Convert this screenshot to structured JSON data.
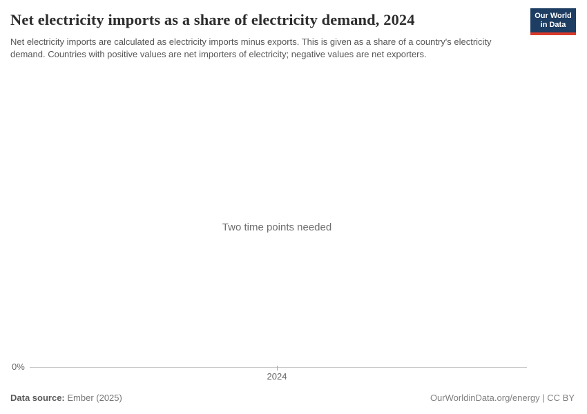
{
  "header": {
    "title": "Net electricity imports as a share of electricity demand, 2024",
    "subtitle": "Net electricity imports are calculated as electricity imports minus exports. This is given as a share of a country's electricity demand. Countries with positive values are net importers of electricity; negative values are net exporters.",
    "logo": {
      "line1": "Our World",
      "line2": "in Data",
      "bg_color": "#1d3d63",
      "accent_color": "#d93a2b"
    }
  },
  "chart": {
    "empty_message": "Two time points needed",
    "y_zero_label": "0%",
    "x_tick_label": "2024"
  },
  "chart_data": {
    "type": "line",
    "title": "Net electricity imports as a share of electricity demand, 2024",
    "series": [],
    "x_ticks": [
      "2024"
    ],
    "y_ticks": [
      "0%"
    ],
    "empty_state_message": "Two time points needed",
    "grid": false,
    "legend": "none",
    "axis_color": "#c8c8c8"
  },
  "footer": {
    "source_label": "Data source:",
    "source_value": " Ember (2025)",
    "attribution": "OurWorldinData.org/energy | CC BY"
  }
}
